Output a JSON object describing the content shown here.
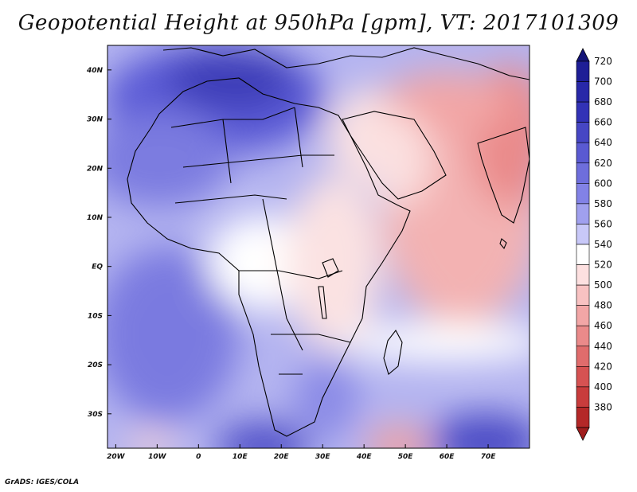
{
  "title": "Geopotential Height at 950hPa [gpm], VT: 2017101309",
  "credit": "GrADS: IGES/COLA",
  "axes": {
    "x_ticks": [
      {
        "label": "20W",
        "lon": -20
      },
      {
        "label": "10W",
        "lon": -10
      },
      {
        "label": "0",
        "lon": 0
      },
      {
        "label": "10E",
        "lon": 10
      },
      {
        "label": "20E",
        "lon": 20
      },
      {
        "label": "30E",
        "lon": 30
      },
      {
        "label": "40E",
        "lon": 40
      },
      {
        "label": "50E",
        "lon": 50
      },
      {
        "label": "60E",
        "lon": 60
      },
      {
        "label": "70E",
        "lon": 70
      }
    ],
    "y_ticks": [
      {
        "label": "40N",
        "lat": 40
      },
      {
        "label": "30N",
        "lat": 30
      },
      {
        "label": "20N",
        "lat": 20
      },
      {
        "label": "10N",
        "lat": 10
      },
      {
        "label": "EQ",
        "lat": 0
      },
      {
        "label": "10S",
        "lat": -10
      },
      {
        "label": "20S",
        "lat": -20
      },
      {
        "label": "30S",
        "lat": -30
      }
    ],
    "lon_range": [
      -22,
      80
    ],
    "lat_range": [
      -37,
      45
    ]
  },
  "colorbar": {
    "levels": [
      {
        "value": "720",
        "color": "#1e1e96"
      },
      {
        "value": "700",
        "color": "#2828a8"
      },
      {
        "value": "680",
        "color": "#3232b6"
      },
      {
        "value": "660",
        "color": "#4646c4"
      },
      {
        "value": "640",
        "color": "#5a5ad2"
      },
      {
        "value": "620",
        "color": "#6e6edc"
      },
      {
        "value": "600",
        "color": "#8282e6"
      },
      {
        "value": "580",
        "color": "#a0a0ee"
      },
      {
        "value": "560",
        "color": "#c8c8f8"
      },
      {
        "value": "540",
        "color": "#ffffff"
      },
      {
        "value": "520",
        "color": "#fde0e0"
      },
      {
        "value": "500",
        "color": "#f8c2c2"
      },
      {
        "value": "480",
        "color": "#f2a6a6"
      },
      {
        "value": "460",
        "color": "#ea8a8a"
      },
      {
        "value": "440",
        "color": "#e06c6c"
      },
      {
        "value": "420",
        "color": "#d65252"
      },
      {
        "value": "400",
        "color": "#c83c3c"
      },
      {
        "value": "380",
        "color": "#b42828"
      }
    ],
    "top_color": "#141478",
    "bottom_color": "#a01e1e"
  }
}
